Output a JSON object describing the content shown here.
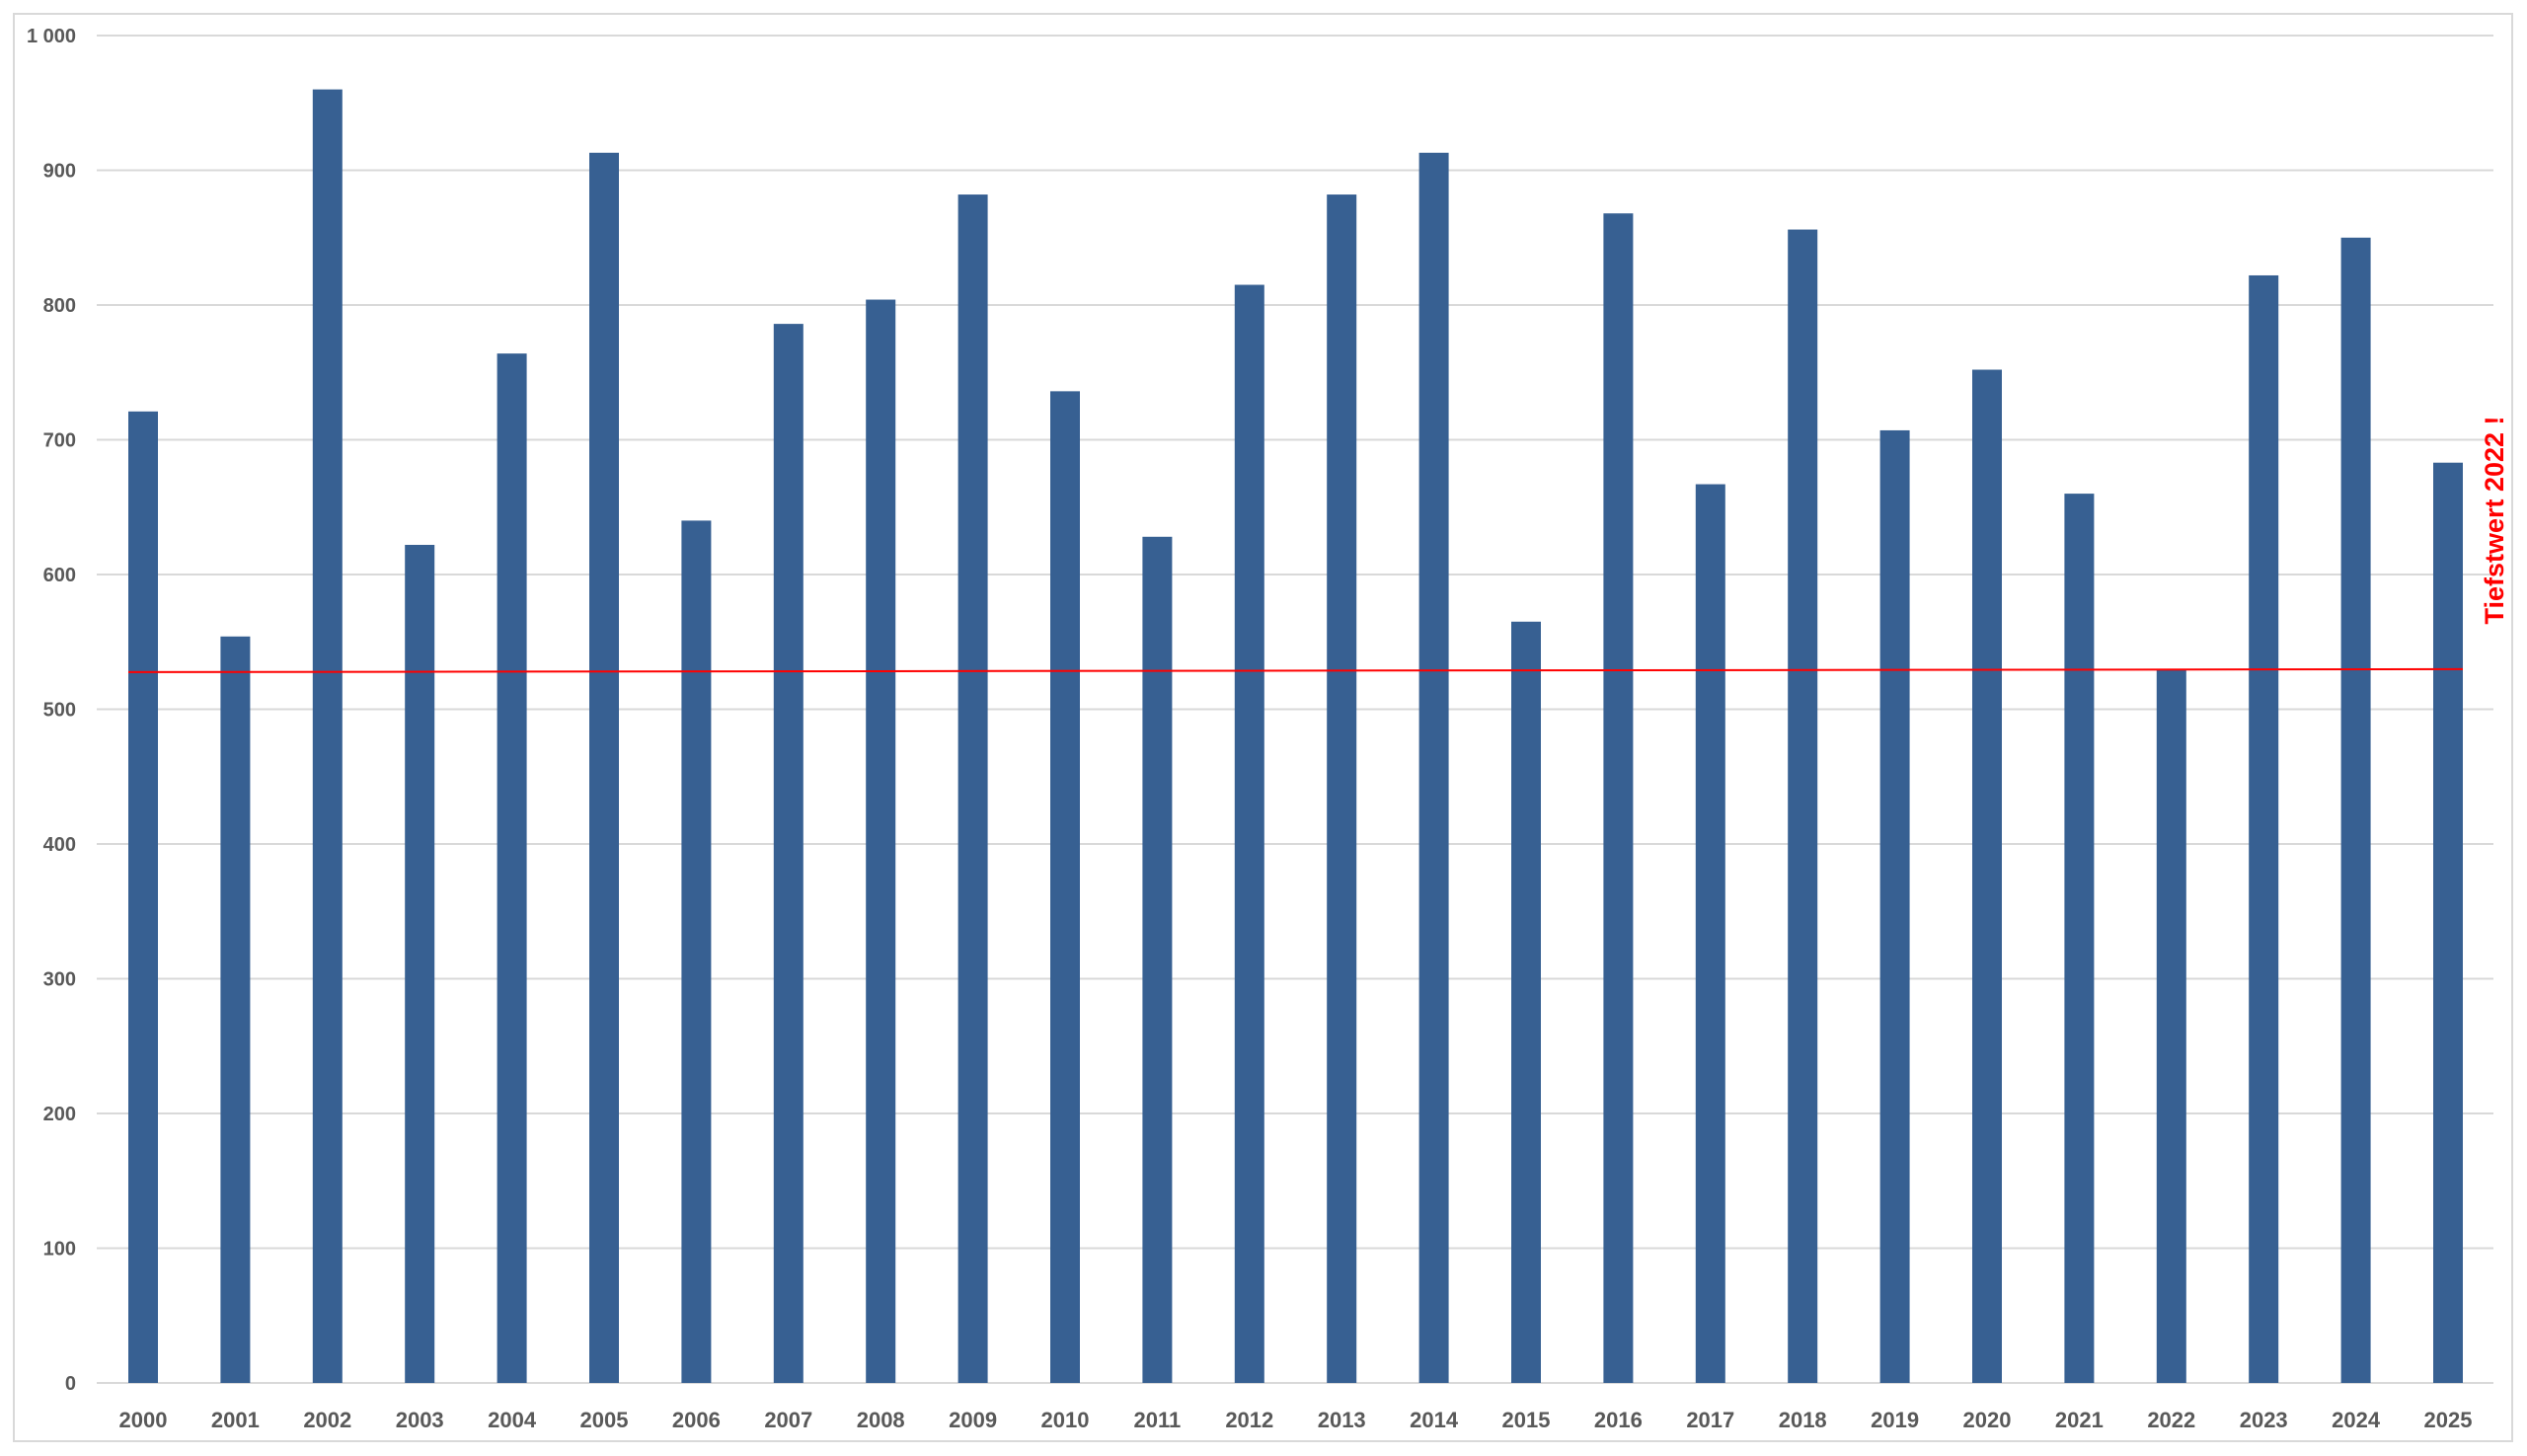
{
  "chart_data": {
    "type": "bar",
    "title": "",
    "xlabel": "",
    "ylabel": "",
    "ylim": [
      0,
      1000
    ],
    "yticks": [
      0,
      100,
      200,
      300,
      400,
      500,
      600,
      700,
      800,
      900,
      1000
    ],
    "ytick_labels": [
      "0",
      "100",
      "200",
      "300",
      "400",
      "500",
      "600",
      "700",
      "800",
      "900",
      "1 000"
    ],
    "grid": true,
    "categories": [
      "2000",
      "2001",
      "2002",
      "2003",
      "2004",
      "2005",
      "2006",
      "2007",
      "2008",
      "2009",
      "2010",
      "2011",
      "2012",
      "2013",
      "2014",
      "2015",
      "2016",
      "2017",
      "2018",
      "2019",
      "2020",
      "2021",
      "2022",
      "2023",
      "2024",
      "2025"
    ],
    "values": [
      721,
      554,
      960,
      622,
      764,
      913,
      640,
      786,
      804,
      882,
      736,
      628,
      815,
      882,
      913,
      565,
      868,
      667,
      856,
      707,
      752,
      660,
      529,
      822,
      850,
      683
    ],
    "bar_color": "#376092",
    "reference_line": {
      "value": 529,
      "color": "#ff0000"
    },
    "annotation": {
      "text": "Tiefstwert 2022 !",
      "color": "#ff0000"
    }
  }
}
